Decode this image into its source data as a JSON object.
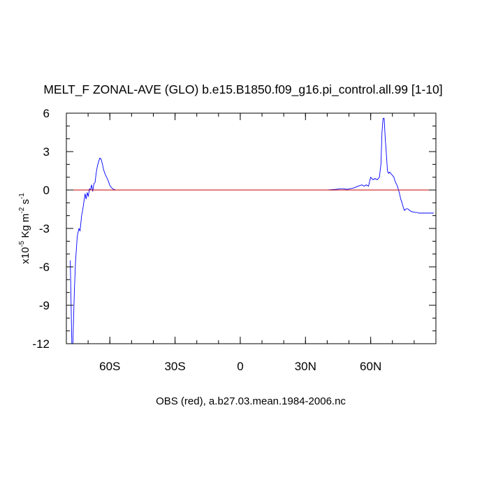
{
  "chart_data": {
    "type": "line",
    "title": "MELT_F ZONAL-AVE (GLO) b.e15.B1850.f09_g16.pi_control.all.99 [1-10]",
    "xlabel": "OBS (red), a.b27.03.mean.1984-2006.nc",
    "ylabel": {
      "prefix": "x10",
      "exp1": "-5",
      "mid1": " Kg m",
      "exp2": "-2",
      "mid2": " s",
      "exp3": "-1"
    },
    "xlim": [
      -80,
      90
    ],
    "ylim": [
      -12,
      6
    ],
    "x_ticks": [
      {
        "value": -60,
        "label": "60S"
      },
      {
        "value": -30,
        "label": "30S"
      },
      {
        "value": 0,
        "label": "0"
      },
      {
        "value": 30,
        "label": "30N"
      },
      {
        "value": 60,
        "label": "60N"
      }
    ],
    "y_ticks": [
      {
        "value": 6,
        "label": "6"
      },
      {
        "value": 3,
        "label": "3"
      },
      {
        "value": 0,
        "label": "0"
      },
      {
        "value": -3,
        "label": "-3"
      },
      {
        "value": -6,
        "label": "-6"
      },
      {
        "value": -9,
        "label": "-9"
      },
      {
        "value": -12,
        "label": "-12"
      }
    ],
    "x_minor_step": 10,
    "y_minor_step": 1,
    "series": [
      {
        "color": "#0000ff",
        "x": [
          -78.2,
          -77.5,
          -77.0,
          -76.3,
          -75.8,
          -75.0,
          -74.2,
          -73.7,
          -73.0,
          -72.5,
          -72.0,
          -71.4,
          -70.9,
          -70.4,
          -69.9,
          -69.4,
          -68.9,
          -68.4,
          -67.9,
          -67.3,
          -66.8,
          -66.3,
          -65.7,
          -65.2,
          -64.6,
          -64.0,
          -63.4,
          -62.9,
          -62.3,
          -61.8,
          -61.2,
          -60.7,
          -60.1,
          -59.6,
          -59.0,
          -58.5,
          -57.9,
          -57.4,
          -56.8,
          -56.3,
          -55.7,
          -55.2,
          -54.6,
          -54.0,
          -53.5,
          -52.0,
          -45,
          -30,
          -15,
          0,
          15,
          30,
          40,
          44,
          46,
          47.5,
          49,
          50.5,
          52,
          53.5,
          55,
          56,
          57,
          58,
          59,
          60,
          61,
          62,
          63,
          64,
          64.7,
          65.2,
          65.7,
          66.2,
          66.7,
          67.2,
          67.7,
          68.2,
          68.7,
          69.2,
          69.7,
          70.2,
          70.7,
          71.2,
          71.7,
          72.3,
          72.8,
          73.3,
          73.8,
          74.4,
          74.9,
          75.5,
          76.1,
          76.7,
          77.3,
          77.9,
          78.5,
          79.1,
          79.7,
          80.3,
          80.9,
          81.4,
          82.0,
          82.5,
          83.1,
          83.6,
          84.2,
          84.8,
          85.3,
          85.9,
          86.6,
          87.4,
          88.1,
          89.0
        ],
        "y": [
          -5.5,
          -12.0,
          -12.0,
          -7.8,
          -5.6,
          -3.6,
          -3.0,
          -3.2,
          -2.0,
          -1.6,
          -1.0,
          -0.3,
          -0.7,
          -0.2,
          -0.5,
          0.1,
          0.0,
          0.4,
          -0.1,
          0.5,
          0.6,
          1.3,
          1.9,
          2.2,
          2.5,
          2.4,
          2.0,
          1.6,
          1.3,
          1.1,
          0.9,
          0.7,
          0.4,
          0.25,
          0.15,
          0.07,
          0.03,
          0.01,
          0.0,
          0.0,
          0.0,
          0.0,
          0.0,
          0.0,
          0.0,
          0.0,
          0.0,
          0.0,
          0.0,
          0.0,
          0.0,
          0.0,
          0.0,
          0.05,
          0.1,
          0.1,
          0.05,
          0.1,
          0.15,
          0.25,
          0.35,
          0.4,
          0.3,
          0.4,
          0.3,
          1.0,
          0.8,
          0.9,
          0.8,
          1.0,
          2.0,
          4.5,
          5.6,
          5.6,
          4.0,
          2.8,
          1.5,
          1.3,
          1.4,
          1.3,
          1.2,
          1.1,
          1.0,
          0.7,
          0.5,
          0.3,
          0.0,
          -0.3,
          -0.7,
          -1.0,
          -1.3,
          -1.6,
          -1.5,
          -1.45,
          -1.5,
          -1.6,
          -1.65,
          -1.7,
          -1.72,
          -1.75,
          -1.75,
          -1.75,
          -1.8,
          -1.8,
          -1.8,
          -1.8,
          -1.8,
          -1.8,
          -1.8,
          -1.8,
          -1.8,
          -1.8,
          -1.8,
          -1.8
        ]
      },
      {
        "color": "#cc0000",
        "x": [
          -80,
          90
        ],
        "y": [
          0,
          0
        ]
      }
    ]
  }
}
